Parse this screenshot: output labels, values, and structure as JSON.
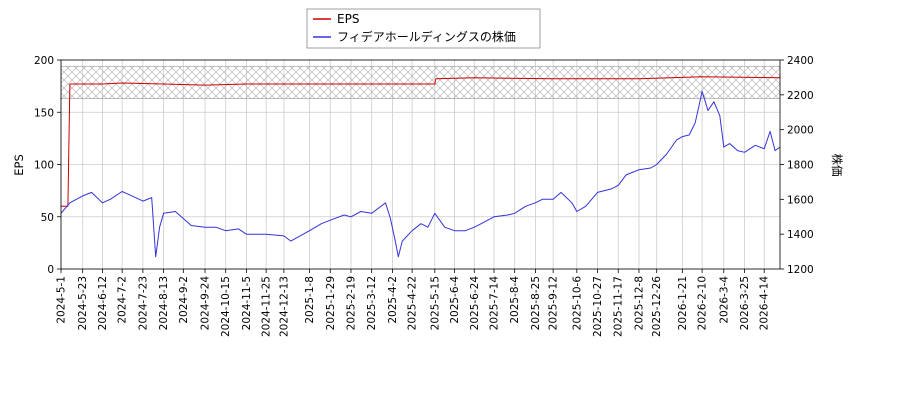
{
  "chart_data": {
    "type": "line",
    "legend_position": "top-center",
    "grid": true,
    "colors": {
      "eps": "#cc0000",
      "price": "#3333dd",
      "band": "#999999"
    },
    "x_axis": {
      "ticks": [
        "2024-5-1",
        "2024-5-23",
        "2024-6-12",
        "2024-7-2",
        "2024-7-23",
        "2024-8-13",
        "2024-9-2",
        "2024-9-24",
        "2024-10-15",
        "2024-11-5",
        "2024-11-25",
        "2024-12-13",
        "2025-1-8",
        "2025-1-29",
        "2025-2-19",
        "2025-3-12",
        "2025-4-2",
        "2025-4-22",
        "2025-5-15",
        "2025-6-4",
        "2025-6-24",
        "2025-7-14",
        "2025-8-4",
        "2025-8-25",
        "2025-9-12",
        "2025-10-6",
        "2025-10-27",
        "2025-11-17",
        "2025-12-8",
        "2025-12-26",
        "2026-1-21",
        "2026-2-10",
        "2026-3-4",
        "2026-3-25",
        "2026-4-14"
      ],
      "end": "2026-4-30"
    },
    "y_left": {
      "label": "EPS",
      "lim": [
        0,
        200
      ],
      "ticks": [
        "0",
        "50",
        "100",
        "150",
        "200"
      ]
    },
    "y_right": {
      "label": "株価",
      "lim": [
        1200,
        2400
      ],
      "ticks": [
        "1200",
        "1400",
        "1600",
        "1800",
        "2000",
        "2200",
        "2400"
      ]
    },
    "band": {
      "axis": "y_left",
      "range": [
        163,
        194
      ]
    },
    "series": [
      {
        "name": "EPS",
        "axis": "y_left",
        "points": [
          [
            "2024-5-1",
            60
          ],
          [
            "2024-5-8",
            60
          ],
          [
            "2024-5-9",
            120
          ],
          [
            "2024-5-10",
            177
          ],
          [
            "2024-6-12",
            177
          ],
          [
            "2024-7-2",
            178
          ],
          [
            "2024-8-13",
            177
          ],
          [
            "2024-9-24",
            176
          ],
          [
            "2024-11-5",
            177
          ],
          [
            "2024-12-13",
            177
          ],
          [
            "2025-2-19",
            177
          ],
          [
            "2025-4-2",
            177
          ],
          [
            "2025-5-15",
            177
          ],
          [
            "2025-5-16",
            182
          ],
          [
            "2025-6-24",
            183
          ],
          [
            "2025-9-12",
            182
          ],
          [
            "2025-12-8",
            182
          ],
          [
            "2026-2-10",
            184
          ],
          [
            "2026-4-30",
            183
          ]
        ]
      },
      {
        "name": "フィデアホールディングスの株価",
        "axis": "y_right",
        "points": [
          [
            "2024-5-1",
            1520
          ],
          [
            "2024-5-10",
            1580
          ],
          [
            "2024-5-23",
            1620
          ],
          [
            "2024-6-1",
            1640
          ],
          [
            "2024-6-12",
            1580
          ],
          [
            "2024-6-20",
            1600
          ],
          [
            "2024-7-2",
            1645
          ],
          [
            "2024-7-12",
            1620
          ],
          [
            "2024-7-23",
            1590
          ],
          [
            "2024-8-1",
            1610
          ],
          [
            "2024-8-5",
            1270
          ],
          [
            "2024-8-9",
            1440
          ],
          [
            "2024-8-13",
            1520
          ],
          [
            "2024-8-25",
            1530
          ],
          [
            "2024-9-2",
            1490
          ],
          [
            "2024-9-10",
            1450
          ],
          [
            "2024-9-24",
            1440
          ],
          [
            "2024-10-5",
            1440
          ],
          [
            "2024-10-15",
            1420
          ],
          [
            "2024-10-28",
            1430
          ],
          [
            "2024-11-5",
            1400
          ],
          [
            "2024-11-15",
            1400
          ],
          [
            "2024-11-25",
            1400
          ],
          [
            "2024-12-13",
            1390
          ],
          [
            "2024-12-20",
            1360
          ],
          [
            "2025-1-8",
            1420
          ],
          [
            "2025-1-20",
            1460
          ],
          [
            "2025-1-29",
            1480
          ],
          [
            "2025-2-12",
            1510
          ],
          [
            "2025-2-19",
            1500
          ],
          [
            "2025-3-1",
            1530
          ],
          [
            "2025-3-12",
            1520
          ],
          [
            "2025-3-26",
            1580
          ],
          [
            "2025-3-31",
            1490
          ],
          [
            "2025-4-5",
            1360
          ],
          [
            "2025-4-8",
            1270
          ],
          [
            "2025-4-12",
            1360
          ],
          [
            "2025-4-22",
            1420
          ],
          [
            "2025-5-1",
            1460
          ],
          [
            "2025-5-8",
            1440
          ],
          [
            "2025-5-15",
            1520
          ],
          [
            "2025-5-25",
            1440
          ],
          [
            "2025-6-4",
            1420
          ],
          [
            "2025-6-15",
            1420
          ],
          [
            "2025-6-24",
            1440
          ],
          [
            "2025-7-1",
            1460
          ],
          [
            "2025-7-14",
            1500
          ],
          [
            "2025-7-28",
            1510
          ],
          [
            "2025-8-4",
            1520
          ],
          [
            "2025-8-15",
            1560
          ],
          [
            "2025-8-25",
            1580
          ],
          [
            "2025-9-1",
            1600
          ],
          [
            "2025-9-12",
            1600
          ],
          [
            "2025-9-20",
            1640
          ],
          [
            "2025-10-1",
            1580
          ],
          [
            "2025-10-6",
            1530
          ],
          [
            "2025-10-15",
            1560
          ],
          [
            "2025-10-27",
            1640
          ],
          [
            "2025-11-10",
            1660
          ],
          [
            "2025-11-17",
            1680
          ],
          [
            "2025-11-25",
            1740
          ],
          [
            "2025-12-8",
            1770
          ],
          [
            "2025-12-20",
            1780
          ],
          [
            "2025-12-26",
            1800
          ],
          [
            "2026-1-5",
            1860
          ],
          [
            "2026-1-15",
            1940
          ],
          [
            "2026-1-21",
            1960
          ],
          [
            "2026-1-28",
            1970
          ],
          [
            "2026-2-3",
            2040
          ],
          [
            "2026-2-7",
            2140
          ],
          [
            "2026-2-10",
            2220
          ],
          [
            "2026-2-16",
            2110
          ],
          [
            "2026-2-22",
            2160
          ],
          [
            "2026-2-28",
            2080
          ],
          [
            "2026-3-4",
            1900
          ],
          [
            "2026-3-10",
            1920
          ],
          [
            "2026-3-18",
            1880
          ],
          [
            "2026-3-25",
            1870
          ],
          [
            "2026-4-5",
            1910
          ],
          [
            "2026-4-14",
            1890
          ],
          [
            "2026-4-20",
            1990
          ],
          [
            "2026-4-25",
            1880
          ],
          [
            "2026-4-30",
            1900
          ]
        ]
      }
    ]
  }
}
